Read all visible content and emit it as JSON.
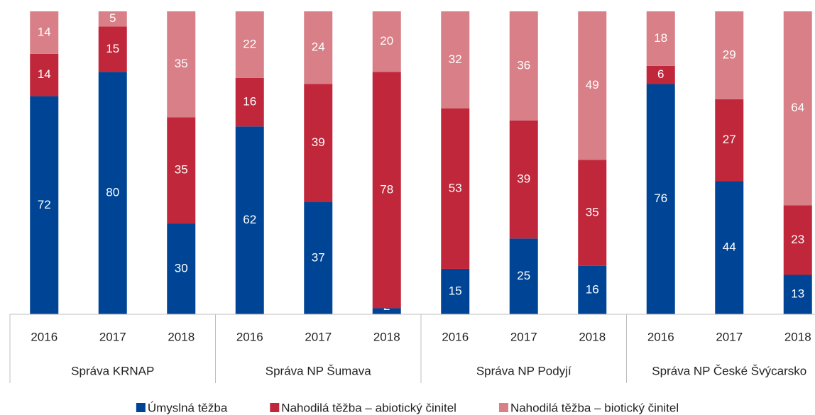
{
  "chart_data": {
    "type": "stacked_bar",
    "categories": [
      "2016",
      "2017",
      "2018",
      "2016",
      "2017",
      "2018",
      "2016",
      "2017",
      "2018",
      "2016",
      "2017",
      "2018"
    ],
    "groups": [
      "Správa KRNAP",
      "Správa NP Šumava",
      "Správa NP Podyjí",
      "Správa NP České Švýcarsko"
    ],
    "series": [
      {
        "name": "Úmyslná těžba",
        "color": "#004595",
        "values": [
          72,
          80,
          30,
          62,
          37,
          2,
          15,
          25,
          16,
          76,
          44,
          13
        ]
      },
      {
        "name": "Nahodilá těžba – abiotický činitel",
        "color": "#c0273a",
        "values": [
          14,
          15,
          35,
          16,
          39,
          78,
          53,
          39,
          35,
          6,
          27,
          23
        ]
      },
      {
        "name": "Nahodilá těžba – biotický činitel",
        "color": "#d97f87",
        "values": [
          14,
          5,
          35,
          22,
          24,
          20,
          32,
          36,
          49,
          18,
          29,
          64
        ]
      }
    ],
    "ylim": [
      0,
      100
    ],
    "legend": "bottom"
  }
}
